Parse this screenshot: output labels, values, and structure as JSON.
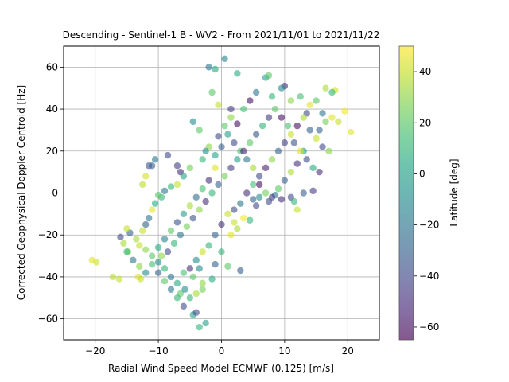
{
  "chart_data": {
    "type": "scatter",
    "title": "Descending - Sentinel-1 B - WV2 - From 2021/11/01 to 2021/11/22",
    "xlabel": "Radial Wind Speed Model ECMWF (0.125) [m/s]",
    "ylabel": "Corrected Geophysical Doppler Centroid [Hz]",
    "xlim": [
      -25,
      25
    ],
    "ylim": [
      -70,
      70
    ],
    "xticks": [
      "−20",
      "−10",
      "0",
      "10",
      "20"
    ],
    "xtick_values": [
      -20,
      -10,
      0,
      10,
      20
    ],
    "yticks": [
      "−60",
      "−40",
      "−20",
      "0",
      "20",
      "40",
      "60"
    ],
    "ytick_values": [
      -60,
      -40,
      -20,
      0,
      20,
      40,
      60
    ],
    "grid": true,
    "point_alpha": 0.6,
    "colorbar": {
      "label": "Latitude [deg]",
      "range": [
        -65,
        50
      ],
      "ticks": [
        "−60",
        "−40",
        "−20",
        "0",
        "20",
        "40"
      ],
      "tick_values": [
        -60,
        -40,
        -20,
        0,
        20,
        40
      ],
      "colormap": "viridis"
    },
    "points": [
      [
        -20.5,
        -32,
        45
      ],
      [
        -19.8,
        -33,
        42
      ],
      [
        -17.2,
        -40,
        38
      ],
      [
        -16.2,
        -41,
        40
      ],
      [
        -15.5,
        -24,
        35
      ],
      [
        -14.8,
        -28,
        30
      ],
      [
        -13.2,
        -40,
        44
      ],
      [
        -12.8,
        -41,
        40
      ],
      [
        -12.5,
        4,
        38
      ],
      [
        -12,
        8,
        42
      ],
      [
        -11.5,
        13,
        -35
      ],
      [
        -11,
        13,
        -30
      ],
      [
        -10.5,
        16,
        -20
      ],
      [
        -9.5,
        -2,
        10
      ],
      [
        -8.5,
        18,
        -40
      ],
      [
        -7,
        13,
        -45
      ],
      [
        -6.5,
        10,
        -50
      ],
      [
        -4.5,
        34,
        -10
      ],
      [
        -3.5,
        30,
        20
      ],
      [
        -2,
        60,
        -20
      ],
      [
        -1,
        59,
        5
      ],
      [
        0.5,
        64,
        -15
      ],
      [
        1.5,
        40,
        -45
      ],
      [
        2.5,
        57,
        5
      ],
      [
        -2,
        22,
        30
      ],
      [
        -1,
        18,
        0
      ],
      [
        -1.5,
        48,
        20
      ],
      [
        -0.5,
        42,
        40
      ],
      [
        3,
        -37,
        -30
      ],
      [
        1,
        -35,
        20
      ],
      [
        -3,
        -43,
        30
      ],
      [
        -4.5,
        -58,
        0
      ],
      [
        -4,
        -57,
        -40
      ],
      [
        -3.5,
        -64,
        10
      ],
      [
        -2.5,
        -62,
        0
      ],
      [
        -5,
        -50,
        10
      ],
      [
        -6.5,
        -48,
        20
      ],
      [
        -5.8,
        -46,
        -10
      ],
      [
        -4,
        -48,
        35
      ],
      [
        -3,
        -46,
        25
      ],
      [
        -1.5,
        -41,
        5
      ],
      [
        -1,
        -34,
        -30
      ],
      [
        0,
        -28,
        10
      ],
      [
        1.5,
        -20,
        45
      ],
      [
        2.5,
        -17,
        35
      ],
      [
        2,
        -14,
        40
      ],
      [
        3.5,
        -12,
        48
      ],
      [
        4.5,
        -13,
        10
      ],
      [
        5,
        -3,
        -30
      ],
      [
        5.5,
        -6,
        -40
      ],
      [
        6,
        -2,
        -10
      ],
      [
        7.5,
        -4,
        -40
      ],
      [
        8.5,
        -1,
        -20
      ],
      [
        9.5,
        -3,
        -50
      ],
      [
        11,
        -2,
        -40
      ],
      [
        12,
        -8,
        40
      ],
      [
        11.5,
        -4,
        10
      ],
      [
        13,
        0,
        -30
      ],
      [
        14.5,
        1,
        -45
      ],
      [
        15.5,
        10,
        -50
      ],
      [
        17,
        20,
        30
      ],
      [
        18.5,
        34,
        40
      ],
      [
        19.5,
        39,
        48
      ],
      [
        20.5,
        29,
        45
      ],
      [
        16,
        38,
        -20
      ],
      [
        17.5,
        36,
        45
      ],
      [
        18,
        49,
        42
      ],
      [
        17.5,
        48,
        10
      ],
      [
        16.5,
        50,
        35
      ],
      [
        15,
        44,
        20
      ],
      [
        14,
        42,
        45
      ],
      [
        13.5,
        38,
        -40
      ],
      [
        12.5,
        46,
        15
      ],
      [
        11,
        44,
        30
      ],
      [
        10,
        51,
        -50
      ],
      [
        9.5,
        50,
        -10
      ],
      [
        8,
        46,
        10
      ],
      [
        7,
        55,
        0
      ],
      [
        7.5,
        56,
        20
      ],
      [
        5.5,
        48,
        -20
      ],
      [
        4.5,
        44,
        -60
      ],
      [
        3.5,
        40,
        15
      ],
      [
        2.5,
        33,
        -60
      ],
      [
        1.5,
        36,
        30
      ],
      [
        0.5,
        32,
        20
      ],
      [
        -0.5,
        27,
        -40
      ],
      [
        -2.5,
        20,
        -10
      ],
      [
        -3,
        16,
        10
      ],
      [
        -5,
        12,
        25
      ],
      [
        -6,
        8,
        0
      ],
      [
        -7,
        4,
        40
      ],
      [
        -8,
        3,
        10
      ],
      [
        -9,
        1,
        -20
      ],
      [
        -10,
        -1,
        20
      ],
      [
        -10.5,
        -5,
        5
      ],
      [
        -11,
        -8,
        45
      ],
      [
        -11.5,
        -12,
        -20
      ],
      [
        -12,
        -15,
        -30
      ],
      [
        -12.5,
        -18,
        40
      ],
      [
        -13.5,
        -22,
        35
      ],
      [
        -14.5,
        -19,
        -30
      ],
      [
        -15,
        -17,
        40
      ],
      [
        -16,
        -21,
        -40
      ],
      [
        -13,
        -25,
        40
      ],
      [
        -12,
        -27,
        30
      ],
      [
        -11,
        -30,
        20
      ],
      [
        -10,
        -33,
        -10
      ],
      [
        -9,
        -36,
        10
      ],
      [
        -8,
        -40,
        -20
      ],
      [
        -7,
        -43,
        5
      ],
      [
        -6,
        -38,
        15
      ],
      [
        -5,
        -36,
        -50
      ],
      [
        -4,
        -32,
        -10
      ],
      [
        -3,
        -28,
        40
      ],
      [
        -2,
        -25,
        10
      ],
      [
        -1,
        -20,
        -30
      ],
      [
        0,
        -15,
        -50
      ],
      [
        1,
        -10,
        40
      ],
      [
        2,
        -8,
        -40
      ],
      [
        3,
        -5,
        -20
      ],
      [
        4,
        0,
        -50
      ],
      [
        5,
        4,
        15
      ],
      [
        6,
        8,
        -40
      ],
      [
        7,
        12,
        -55
      ],
      [
        8,
        16,
        30
      ],
      [
        9,
        20,
        -30
      ],
      [
        10,
        24,
        -45
      ],
      [
        11,
        28,
        40
      ],
      [
        12,
        32,
        -60
      ],
      [
        13,
        36,
        35
      ],
      [
        14,
        30,
        -30
      ],
      [
        15,
        26,
        40
      ],
      [
        16,
        22,
        -40
      ],
      [
        13,
        20,
        0
      ],
      [
        12,
        14,
        -50
      ],
      [
        11,
        10,
        35
      ],
      [
        10,
        6,
        -30
      ],
      [
        9,
        2,
        20
      ],
      [
        8,
        -2,
        -45
      ],
      [
        7,
        0,
        25
      ],
      [
        6,
        4,
        -60
      ],
      [
        5,
        12,
        35
      ],
      [
        4,
        16,
        -20
      ],
      [
        3,
        20,
        15
      ],
      [
        2,
        24,
        -40
      ],
      [
        1,
        28,
        0
      ],
      [
        0,
        22,
        -30
      ],
      [
        -1,
        12,
        45
      ],
      [
        -2,
        6,
        -50
      ],
      [
        -3,
        2,
        15
      ],
      [
        -4,
        -2,
        -25
      ],
      [
        -5,
        -6,
        35
      ],
      [
        -6,
        -10,
        0
      ],
      [
        -7,
        -14,
        -35
      ],
      [
        -8,
        -18,
        20
      ],
      [
        -9,
        -22,
        -15
      ],
      [
        -10,
        -26,
        5
      ],
      [
        -9.5,
        -30,
        30
      ],
      [
        -8.5,
        -28,
        -40
      ],
      [
        -7.5,
        -24,
        10
      ],
      [
        -6.5,
        -20,
        -20
      ],
      [
        -5.5,
        -16,
        25
      ],
      [
        -4.5,
        -12,
        -35
      ],
      [
        -3.5,
        -8,
        30
      ],
      [
        -2.5,
        -4,
        -50
      ],
      [
        -1.5,
        0,
        10
      ],
      [
        -0.5,
        4,
        -30
      ],
      [
        0.5,
        8,
        25
      ],
      [
        1.5,
        12,
        -45
      ],
      [
        2.5,
        16,
        0
      ],
      [
        3.5,
        20,
        -55
      ],
      [
        4.5,
        24,
        20
      ],
      [
        5.5,
        28,
        -35
      ],
      [
        6.5,
        32,
        10
      ],
      [
        7.5,
        36,
        -45
      ],
      [
        8.5,
        40,
        20
      ],
      [
        9.5,
        36,
        -60
      ],
      [
        10.5,
        32,
        15
      ],
      [
        11.5,
        24,
        -35
      ],
      [
        12.5,
        20,
        45
      ],
      [
        13.5,
        16,
        -40
      ],
      [
        14.5,
        12,
        5
      ],
      [
        15.5,
        30,
        -30
      ],
      [
        16.5,
        34,
        25
      ],
      [
        -15,
        -28,
        10
      ],
      [
        -14,
        -32,
        -20
      ],
      [
        -13,
        -35,
        30
      ],
      [
        -12,
        -38,
        -10
      ],
      [
        -11,
        -34,
        15
      ],
      [
        -10,
        -38,
        -30
      ],
      [
        -9,
        -42,
        20
      ],
      [
        -8,
        -46,
        -20
      ],
      [
        -7,
        -50,
        10
      ],
      [
        -6,
        -54,
        -40
      ],
      [
        -4.5,
        -40,
        20
      ],
      [
        -3.5,
        -36,
        -10
      ]
    ]
  }
}
